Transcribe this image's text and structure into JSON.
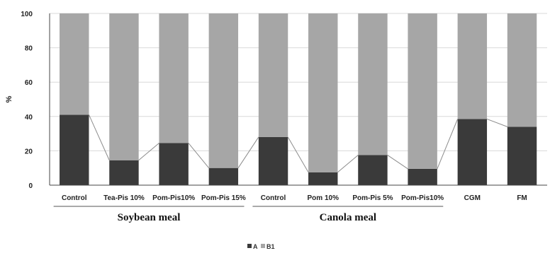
{
  "chart_data": {
    "type": "bar",
    "stacked": true,
    "ylabel": "%",
    "ylim": [
      0,
      100
    ],
    "yticks": [
      0,
      20,
      40,
      60,
      80,
      100
    ],
    "categories": [
      "Control",
      "Tea-Pis 10%",
      "Pom-Pis10%",
      "Pom-Pis 15%",
      "Control",
      "Pom 10%",
      "Pom-Pis 5%",
      "Pom-Pis10%",
      "CGM",
      "FM"
    ],
    "series": [
      {
        "name": "A",
        "color": "#3a3a3a",
        "values": [
          41,
          14.5,
          24.5,
          10,
          28,
          7.5,
          17.5,
          9.5,
          38.5,
          34
        ]
      },
      {
        "name": "B1",
        "color": "#a6a6a6",
        "values": [
          59,
          85.5,
          75.5,
          90,
          72,
          92.5,
          82.5,
          90.5,
          61.5,
          66
        ]
      }
    ],
    "groups": [
      {
        "label": "Soybean meal",
        "categories": [
          "Control",
          "Tea-Pis 10%",
          "Pom-Pis10%",
          "Pom-Pis 15%"
        ]
      },
      {
        "label": "Canola meal",
        "categories": [
          "Control",
          "Pom 10%",
          "Pom-Pis 5%",
          "Pom-Pis10%"
        ]
      }
    ],
    "legend_position": "bottom-center",
    "connector_lines": true
  }
}
